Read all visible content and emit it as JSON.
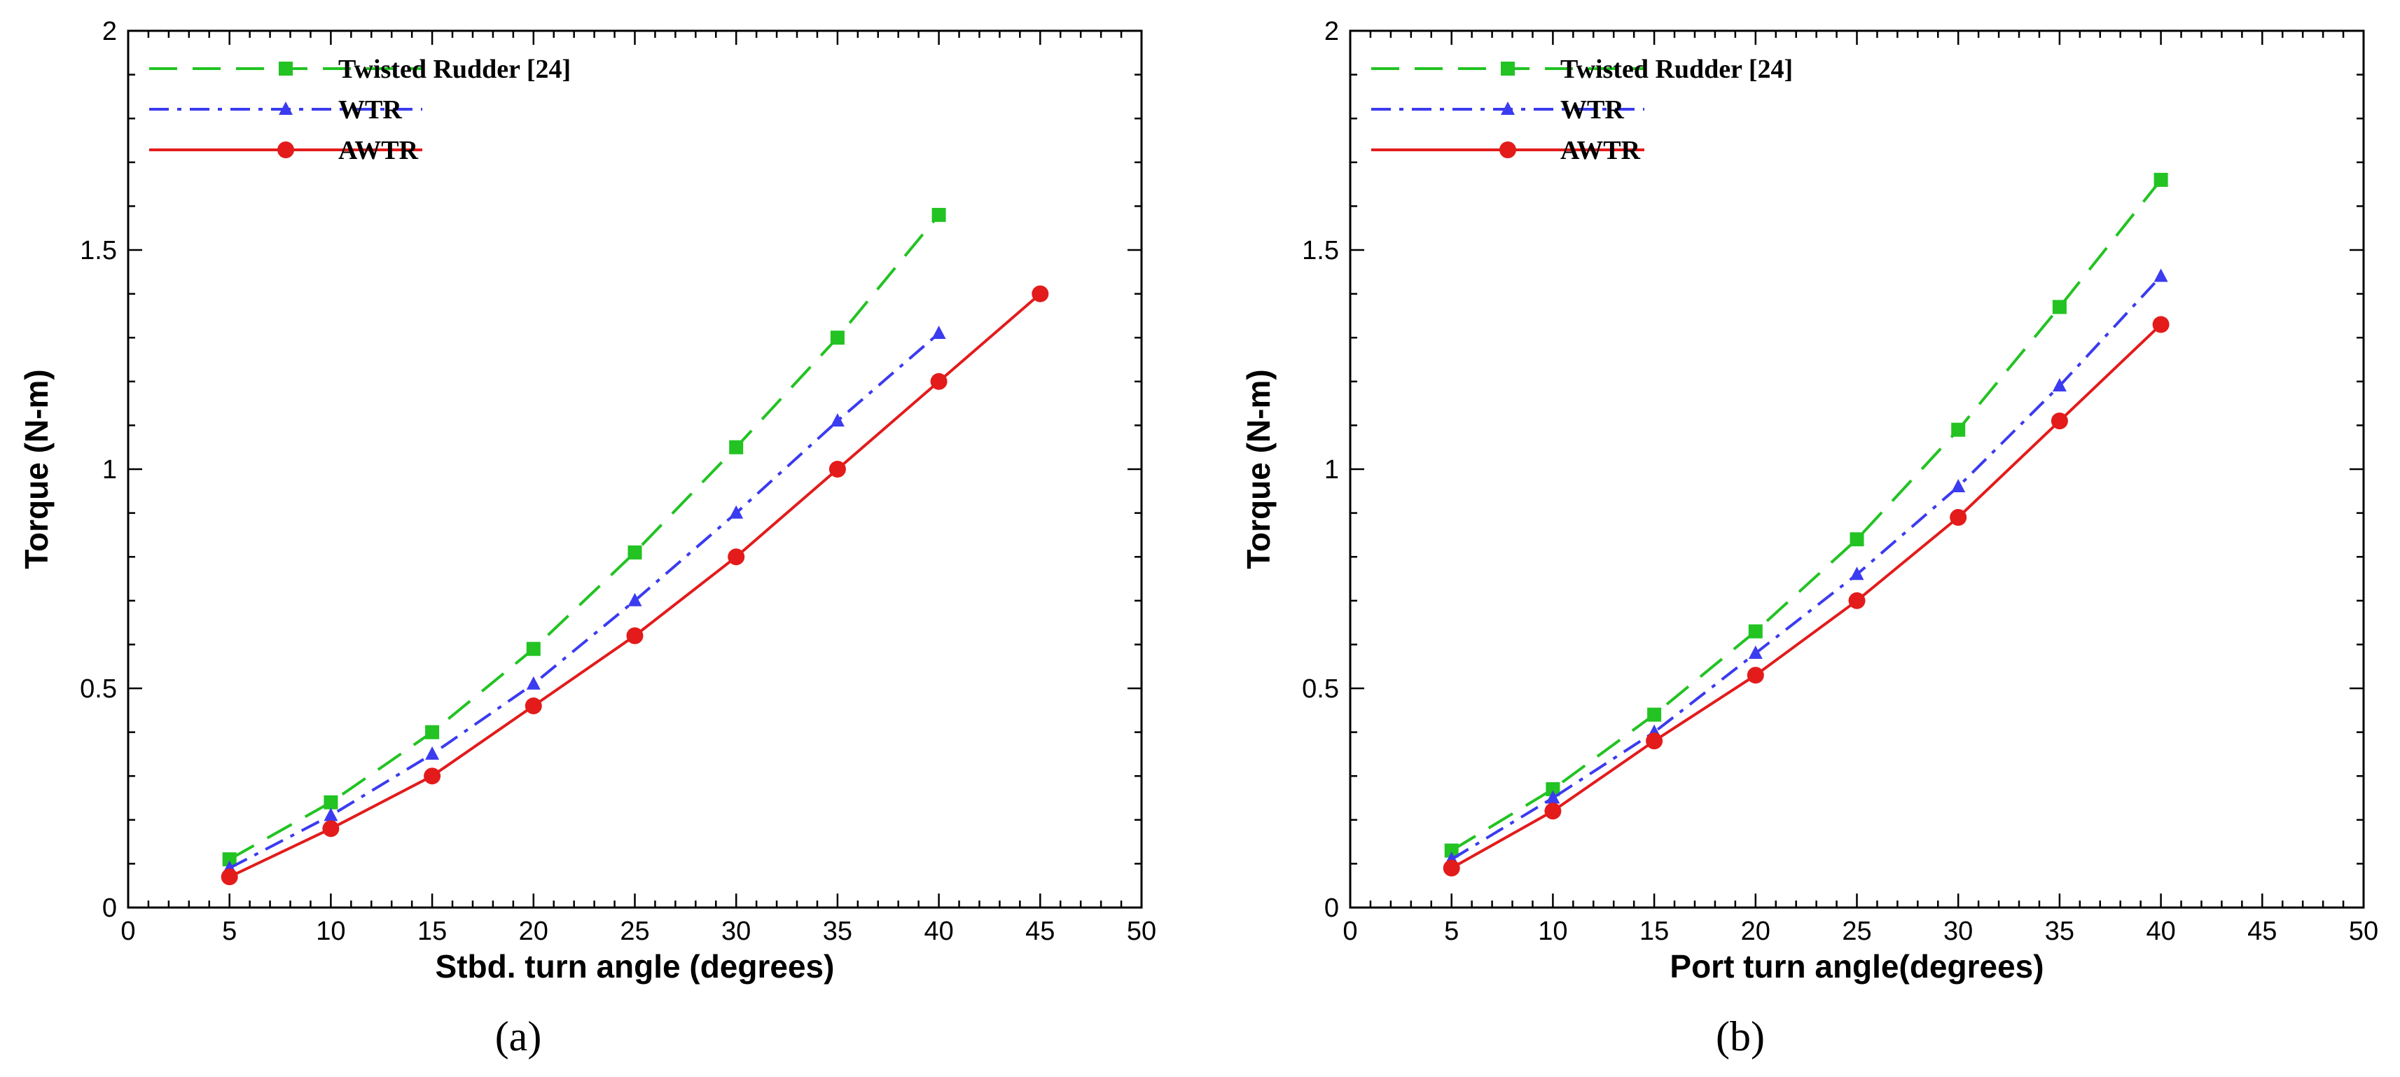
{
  "chart_data": [
    {
      "type": "line",
      "panel_label": "(a)",
      "xlabel": "Stbd. turn angle (degrees)",
      "ylabel": "Torque (N-m)",
      "xlim": [
        0,
        50
      ],
      "ylim": [
        0,
        2
      ],
      "x_ticks": [
        "0",
        "5",
        "10",
        "15",
        "20",
        "25",
        "30",
        "35",
        "40",
        "45",
        "50"
      ],
      "y_ticks": [
        "0",
        "0.5",
        "1",
        "1.5",
        "2"
      ],
      "grid": false,
      "legend_position": "top-left",
      "series": [
        {
          "name": "Twisted Rudder [24]",
          "color": "#22c322",
          "line_style": "dashed",
          "marker": "square",
          "x": [
            5,
            10,
            15,
            20,
            25,
            30,
            35,
            40
          ],
          "y": [
            0.11,
            0.24,
            0.4,
            0.59,
            0.81,
            1.05,
            1.3,
            1.58
          ]
        },
        {
          "name": "WTR",
          "color": "#3b3bf0",
          "line_style": "dash-dot",
          "marker": "triangle",
          "x": [
            5,
            10,
            15,
            20,
            25,
            30,
            35,
            40
          ],
          "y": [
            0.09,
            0.21,
            0.35,
            0.51,
            0.7,
            0.9,
            1.11,
            1.31
          ]
        },
        {
          "name": "AWTR",
          "color": "#e31b1b",
          "line_style": "solid",
          "marker": "circle",
          "x": [
            5,
            10,
            15,
            20,
            25,
            30,
            35,
            40,
            45
          ],
          "y": [
            0.07,
            0.18,
            0.3,
            0.46,
            0.62,
            0.8,
            1.0,
            1.2,
            1.4
          ]
        }
      ]
    },
    {
      "type": "line",
      "panel_label": "(b)",
      "xlabel": "Port turn angle(degrees)",
      "ylabel": "Torque (N-m)",
      "xlim": [
        0,
        50
      ],
      "ylim": [
        0,
        2
      ],
      "x_ticks": [
        "0",
        "5",
        "10",
        "15",
        "20",
        "25",
        "30",
        "35",
        "40",
        "45",
        "50"
      ],
      "y_ticks": [
        "0",
        "0.5",
        "1",
        "1.5",
        "2"
      ],
      "grid": false,
      "legend_position": "top-left",
      "series": [
        {
          "name": "Twisted Rudder [24]",
          "color": "#22c322",
          "line_style": "dashed",
          "marker": "square",
          "x": [
            5,
            10,
            15,
            20,
            25,
            30,
            35,
            40
          ],
          "y": [
            0.13,
            0.27,
            0.44,
            0.63,
            0.84,
            1.09,
            1.37,
            1.66
          ]
        },
        {
          "name": "WTR",
          "color": "#3b3bf0",
          "line_style": "dash-dot",
          "marker": "triangle",
          "x": [
            5,
            10,
            15,
            20,
            25,
            30,
            35,
            40
          ],
          "y": [
            0.11,
            0.25,
            0.4,
            0.58,
            0.76,
            0.96,
            1.19,
            1.44
          ]
        },
        {
          "name": "AWTR",
          "color": "#e31b1b",
          "line_style": "solid",
          "marker": "circle",
          "x": [
            5,
            10,
            15,
            20,
            25,
            30,
            35,
            40
          ],
          "y": [
            0.09,
            0.22,
            0.38,
            0.53,
            0.7,
            0.89,
            1.11,
            1.33
          ]
        }
      ]
    }
  ]
}
